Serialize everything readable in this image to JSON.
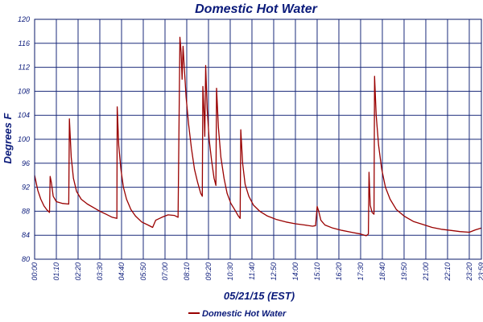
{
  "colors": {
    "series": "#990000",
    "grid": "#1a2a7a",
    "text": "#0a1a7a",
    "background": "#ffffff"
  },
  "chart_data": {
    "type": "line",
    "title": "Domestic Hot Water",
    "xlabel": "05/21/15 (EST)",
    "ylabel": "Degrees F",
    "ylim": [
      80,
      120
    ],
    "xlim": [
      "00:00",
      "23:59"
    ],
    "yticks": [
      "80",
      "84",
      "88",
      "92",
      "96",
      "100",
      "104",
      "108",
      "112",
      "116",
      "120"
    ],
    "xticks": [
      "00:00",
      "01:10",
      "02:20",
      "03:30",
      "04:40",
      "05:50",
      "07:00",
      "08:10",
      "09:20",
      "10:30",
      "11:40",
      "12:50",
      "14:00",
      "15:10",
      "16:20",
      "17:30",
      "18:40",
      "19:50",
      "21:00",
      "22:10",
      "23:20",
      "23:59"
    ],
    "grid": true,
    "legend_position": "bottom-left",
    "series": [
      {
        "name": "Domestic Hot Water",
        "points": [
          [
            "00:00",
            94.0
          ],
          [
            "00:10",
            91.5
          ],
          [
            "00:20",
            90.0
          ],
          [
            "00:30",
            88.9
          ],
          [
            "00:40",
            88.2
          ],
          [
            "00:48",
            87.8
          ],
          [
            "00:50",
            93.8
          ],
          [
            "00:54",
            92.8
          ],
          [
            "01:00",
            90.5
          ],
          [
            "01:10",
            89.6
          ],
          [
            "01:30",
            89.3
          ],
          [
            "01:50",
            89.2
          ],
          [
            "01:52",
            103.4
          ],
          [
            "01:58",
            97.0
          ],
          [
            "02:05",
            93.5
          ],
          [
            "02:15",
            91.3
          ],
          [
            "02:30",
            90.0
          ],
          [
            "02:50",
            89.2
          ],
          [
            "03:10",
            88.6
          ],
          [
            "03:30",
            88.0
          ],
          [
            "03:50",
            87.5
          ],
          [
            "04:10",
            87.0
          ],
          [
            "04:25",
            86.8
          ],
          [
            "04:26",
            105.4
          ],
          [
            "04:31",
            99.0
          ],
          [
            "04:38",
            95.0
          ],
          [
            "04:46",
            92.0
          ],
          [
            "04:56",
            90.0
          ],
          [
            "05:10",
            88.3
          ],
          [
            "05:25",
            87.2
          ],
          [
            "05:45",
            86.2
          ],
          [
            "06:05",
            85.7
          ],
          [
            "06:20",
            85.3
          ],
          [
            "06:30",
            86.5
          ],
          [
            "06:50",
            87.0
          ],
          [
            "07:10",
            87.4
          ],
          [
            "07:30",
            87.3
          ],
          [
            "07:42",
            87.0
          ],
          [
            "07:48",
            117.0
          ],
          [
            "07:52",
            114.5
          ],
          [
            "07:55",
            110.0
          ],
          [
            "07:58",
            115.5
          ],
          [
            "08:02",
            112.0
          ],
          [
            "08:08",
            107.0
          ],
          [
            "08:16",
            102.5
          ],
          [
            "08:25",
            98.5
          ],
          [
            "08:35",
            95.0
          ],
          [
            "08:45",
            92.8
          ],
          [
            "08:55",
            91.0
          ],
          [
            "09:00",
            90.5
          ],
          [
            "09:02",
            108.8
          ],
          [
            "09:06",
            104.0
          ],
          [
            "09:08",
            100.5
          ],
          [
            "09:11",
            112.3
          ],
          [
            "09:16",
            105.0
          ],
          [
            "09:22",
            100.0
          ],
          [
            "09:30",
            96.5
          ],
          [
            "09:38",
            93.5
          ],
          [
            "09:44",
            92.3
          ],
          [
            "09:46",
            108.5
          ],
          [
            "09:52",
            102.0
          ],
          [
            "10:00",
            97.0
          ],
          [
            "10:10",
            93.5
          ],
          [
            "10:20",
            91.0
          ],
          [
            "10:32",
            89.3
          ],
          [
            "10:44",
            88.3
          ],
          [
            "10:55",
            87.3
          ],
          [
            "11:02",
            86.8
          ],
          [
            "11:04",
            101.6
          ],
          [
            "11:10",
            96.0
          ],
          [
            "11:18",
            92.5
          ],
          [
            "11:30",
            90.5
          ],
          [
            "11:45",
            89.0
          ],
          [
            "12:05",
            88.0
          ],
          [
            "12:30",
            87.2
          ],
          [
            "13:00",
            86.6
          ],
          [
            "13:30",
            86.2
          ],
          [
            "14:00",
            85.9
          ],
          [
            "14:30",
            85.7
          ],
          [
            "14:55",
            85.5
          ],
          [
            "15:05",
            85.6
          ],
          [
            "15:10",
            88.8
          ],
          [
            "15:15",
            88.0
          ],
          [
            "15:22",
            86.5
          ],
          [
            "15:35",
            85.7
          ],
          [
            "16:00",
            85.2
          ],
          [
            "16:30",
            84.8
          ],
          [
            "17:00",
            84.5
          ],
          [
            "17:30",
            84.2
          ],
          [
            "17:48",
            83.9
          ],
          [
            "17:55",
            84.2
          ],
          [
            "17:57",
            94.5
          ],
          [
            "18:01",
            89.0
          ],
          [
            "18:07",
            87.8
          ],
          [
            "18:13",
            87.5
          ],
          [
            "18:15",
            110.5
          ],
          [
            "18:20",
            104.0
          ],
          [
            "18:28",
            99.0
          ],
          [
            "18:38",
            95.0
          ],
          [
            "18:50",
            92.0
          ],
          [
            "19:05",
            90.0
          ],
          [
            "19:25",
            88.3
          ],
          [
            "19:50",
            87.2
          ],
          [
            "20:20",
            86.3
          ],
          [
            "20:50",
            85.8
          ],
          [
            "21:20",
            85.3
          ],
          [
            "21:50",
            85.0
          ],
          [
            "22:20",
            84.8
          ],
          [
            "22:50",
            84.6
          ],
          [
            "23:20",
            84.5
          ],
          [
            "23:40",
            84.9
          ],
          [
            "23:59",
            85.2
          ]
        ]
      }
    ]
  }
}
